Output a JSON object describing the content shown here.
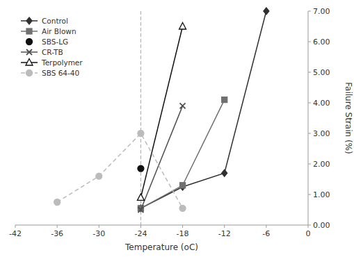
{
  "chart_data": {
    "type": "line",
    "xlabel": "Temperature (oC)",
    "ylabel": "Failure Strain (%)",
    "series": [
      {
        "name": "Control",
        "color": "#303030",
        "marker": "diamond",
        "line_style": "solid",
        "x": [
          -24,
          -18,
          -12,
          -6
        ],
        "values": [
          0.55,
          1.25,
          1.7,
          7.0
        ]
      },
      {
        "name": "Air Blown",
        "color": "#707070",
        "marker": "square",
        "line_style": "solid",
        "x": [
          -24,
          -18,
          -12
        ],
        "values": [
          0.55,
          1.3,
          4.1
        ]
      },
      {
        "name": "SBS-LG",
        "color": "#101010",
        "marker": "circle",
        "line_style": "none",
        "x": [
          -24
        ],
        "values": [
          1.85
        ]
      },
      {
        "name": "CR-TB",
        "color": "#505050",
        "marker": "x",
        "line_style": "solid",
        "x": [
          -24,
          -18
        ],
        "values": [
          0.5,
          3.9
        ]
      },
      {
        "name": "Terpolymer",
        "color": "#101010",
        "marker": "triangle-open",
        "line_style": "solid",
        "x": [
          -24,
          -18
        ],
        "values": [
          0.9,
          6.5
        ]
      },
      {
        "name": "SBS 64-40",
        "color": "#bbbbbb",
        "marker": "circle",
        "line_style": "dashed",
        "x": [
          -36,
          -30,
          -24,
          -18
        ],
        "values": [
          0.75,
          1.6,
          3.0,
          0.55
        ]
      }
    ],
    "xlim": [
      -42,
      0
    ],
    "ylim": [
      0.0,
      7.0
    ],
    "xticks": [
      -42,
      -36,
      -30,
      -24,
      -18,
      -12,
      -6,
      0
    ],
    "yticks": [
      {
        "value": 0.0,
        "label": "0.00"
      },
      {
        "value": 1.0,
        "label": "1.00"
      },
      {
        "value": 2.0,
        "label": "2.00"
      },
      {
        "value": 3.0,
        "label": "3.00"
      },
      {
        "value": 4.0,
        "label": "4.00"
      },
      {
        "value": 5.0,
        "label": "5.00"
      },
      {
        "value": 6.0,
        "label": "6.00"
      },
      {
        "value": 7.0,
        "label": "7.00"
      }
    ],
    "vline": -24,
    "legend": "upper-left",
    "grid": false
  }
}
